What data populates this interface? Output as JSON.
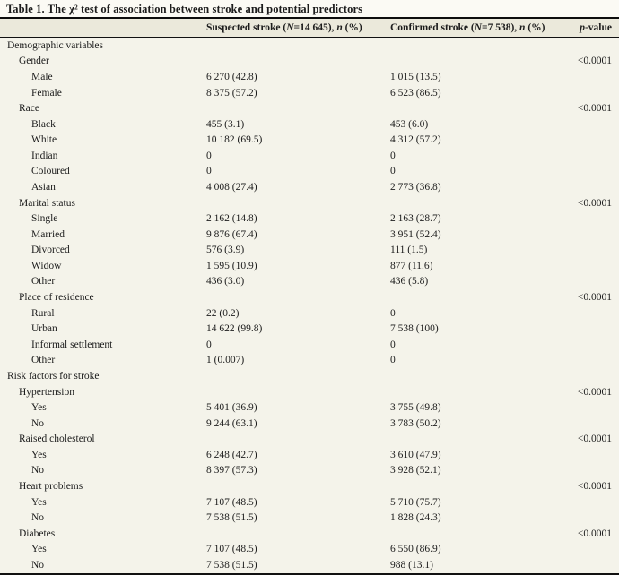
{
  "table": {
    "title": "Table 1. The χ² test of association between stroke and potential predictors",
    "header": {
      "variable": "",
      "suspected": {
        "t1": "Suspected stroke (",
        "i1": "N",
        "t2": "=14 645), ",
        "i2": "n",
        "t3": " (%)"
      },
      "confirmed": {
        "t1": "Confirmed stroke (",
        "i1": "N",
        "t2": "=7 538), ",
        "i2": "n",
        "t3": " (%)"
      },
      "pvalue": {
        "i1": "p",
        "t1": "-value"
      }
    },
    "rows": [
      {
        "label": "Demographic variables",
        "indent": 0,
        "suspected": "",
        "confirmed": "",
        "p": ""
      },
      {
        "label": "Gender",
        "indent": 1,
        "suspected": "",
        "confirmed": "",
        "p": "<0.0001"
      },
      {
        "label": "Male",
        "indent": 2,
        "suspected": "6 270 (42.8)",
        "confirmed": "1 015 (13.5)",
        "p": ""
      },
      {
        "label": "Female",
        "indent": 2,
        "suspected": "8 375 (57.2)",
        "confirmed": "6 523 (86.5)",
        "p": ""
      },
      {
        "label": "Race",
        "indent": 1,
        "suspected": "",
        "confirmed": "",
        "p": "<0.0001"
      },
      {
        "label": "Black",
        "indent": 2,
        "suspected": "455 (3.1)",
        "confirmed": "453 (6.0)",
        "p": ""
      },
      {
        "label": "White",
        "indent": 2,
        "suspected": "10 182 (69.5)",
        "confirmed": "4 312 (57.2)",
        "p": ""
      },
      {
        "label": "Indian",
        "indent": 2,
        "suspected": "0",
        "confirmed": "0",
        "p": ""
      },
      {
        "label": "Coloured",
        "indent": 2,
        "suspected": "0",
        "confirmed": "0",
        "p": ""
      },
      {
        "label": "Asian",
        "indent": 2,
        "suspected": "4 008 (27.4)",
        "confirmed": "2 773 (36.8)",
        "p": ""
      },
      {
        "label": "Marital status",
        "indent": 1,
        "suspected": "",
        "confirmed": "",
        "p": "<0.0001"
      },
      {
        "label": "Single",
        "indent": 2,
        "suspected": "2 162 (14.8)",
        "confirmed": "2 163 (28.7)",
        "p": ""
      },
      {
        "label": "Married",
        "indent": 2,
        "suspected": "9 876 (67.4)",
        "confirmed": "3 951 (52.4)",
        "p": ""
      },
      {
        "label": "Divorced",
        "indent": 2,
        "suspected": "576 (3.9)",
        "confirmed": "111 (1.5)",
        "p": ""
      },
      {
        "label": "Widow",
        "indent": 2,
        "suspected": "1 595 (10.9)",
        "confirmed": "877 (11.6)",
        "p": ""
      },
      {
        "label": "Other",
        "indent": 2,
        "suspected": "436 (3.0)",
        "confirmed": "436 (5.8)",
        "p": ""
      },
      {
        "label": "Place of residence",
        "indent": 1,
        "suspected": "",
        "confirmed": "",
        "p": "<0.0001"
      },
      {
        "label": "Rural",
        "indent": 2,
        "suspected": "22 (0.2)",
        "confirmed": "0",
        "p": ""
      },
      {
        "label": "Urban",
        "indent": 2,
        "suspected": "14 622 (99.8)",
        "confirmed": "7 538 (100)",
        "p": ""
      },
      {
        "label": "Informal settlement",
        "indent": 2,
        "suspected": "0",
        "confirmed": "0",
        "p": ""
      },
      {
        "label": "Other",
        "indent": 2,
        "suspected": "1 (0.007)",
        "confirmed": "0",
        "p": ""
      },
      {
        "label": "Risk factors for stroke",
        "indent": 0,
        "suspected": "",
        "confirmed": "",
        "p": ""
      },
      {
        "label": "Hypertension",
        "indent": 1,
        "suspected": "",
        "confirmed": "",
        "p": "<0.0001"
      },
      {
        "label": "Yes",
        "indent": 2,
        "suspected": "5 401 (36.9)",
        "confirmed": "3 755 (49.8)",
        "p": ""
      },
      {
        "label": "No",
        "indent": 2,
        "suspected": "9 244 (63.1)",
        "confirmed": "3 783 (50.2)",
        "p": ""
      },
      {
        "label": "Raised cholesterol",
        "indent": 1,
        "suspected": "",
        "confirmed": "",
        "p": "<0.0001"
      },
      {
        "label": "Yes",
        "indent": 2,
        "suspected": "6 248 (42.7)",
        "confirmed": "3 610 (47.9)",
        "p": ""
      },
      {
        "label": "No",
        "indent": 2,
        "suspected": "8 397 (57.3)",
        "confirmed": "3 928 (52.1)",
        "p": ""
      },
      {
        "label": "Heart problems",
        "indent": 1,
        "suspected": "",
        "confirmed": "",
        "p": "<0.0001"
      },
      {
        "label": "Yes",
        "indent": 2,
        "suspected": "7 107 (48.5)",
        "confirmed": "5 710 (75.7)",
        "p": ""
      },
      {
        "label": "No",
        "indent": 2,
        "suspected": "7 538 (51.5)",
        "confirmed": "1 828 (24.3)",
        "p": ""
      },
      {
        "label": "Diabetes",
        "indent": 1,
        "suspected": "",
        "confirmed": "",
        "p": "<0.0001"
      },
      {
        "label": "Yes",
        "indent": 2,
        "suspected": "7 107 (48.5)",
        "confirmed": "6 550 (86.9)",
        "p": ""
      },
      {
        "label": "No",
        "indent": 2,
        "suspected": "7 538 (51.5)",
        "confirmed": "988 (13.1)",
        "p": ""
      }
    ]
  },
  "colors": {
    "page_bg": "#f4f3ea",
    "header_bg": "#ebe9db",
    "title_bg": "#fbfaf4",
    "rule": "#111111",
    "text": "#1c1c1c"
  }
}
